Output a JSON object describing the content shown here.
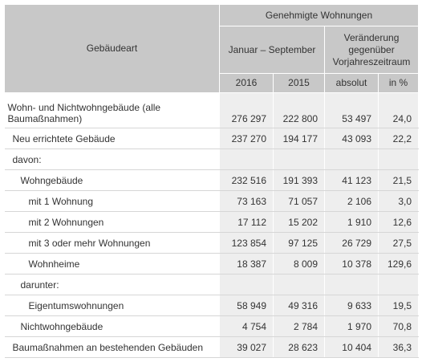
{
  "header": {
    "gebaeudeart": "Gebäudeart",
    "group": "Genehmigte Wohnungen",
    "period": "Januar – September",
    "change": "Veränderung gegenüber Vorjahreszeitraum",
    "y2016": "2016",
    "y2015": "2015",
    "absolut": "absolut",
    "percent": "in %"
  },
  "rows": [
    {
      "label": "Wohn- und Nichtwohngebäude (alle Baumaßnahmen)",
      "v2016": "276 297",
      "v2015": "222 800",
      "abs": "53 497",
      "pct": "24,0"
    },
    {
      "label": "Neu errichtete Gebäude",
      "v2016": "237 270",
      "v2015": "194 177",
      "abs": "43 093",
      "pct": "22,2"
    },
    {
      "label": "davon:",
      "v2016": "",
      "v2015": "",
      "abs": "",
      "pct": ""
    },
    {
      "label": "Wohngebäude",
      "v2016": "232 516",
      "v2015": "191 393",
      "abs": "41 123",
      "pct": "21,5"
    },
    {
      "label": "mit 1 Wohnung",
      "v2016": "73 163",
      "v2015": "71 057",
      "abs": "2 106",
      "pct": "3,0"
    },
    {
      "label": "mit 2 Wohnungen",
      "v2016": "17 112",
      "v2015": "15 202",
      "abs": "1 910",
      "pct": "12,6"
    },
    {
      "label": "mit 3 oder mehr Wohnungen",
      "v2016": "123 854",
      "v2015": "97 125",
      "abs": "26 729",
      "pct": "27,5"
    },
    {
      "label": "Wohnheime",
      "v2016": "18 387",
      "v2015": "8 009",
      "abs": "10 378",
      "pct": "129,6"
    },
    {
      "label": "darunter:",
      "v2016": "",
      "v2015": "",
      "abs": "",
      "pct": ""
    },
    {
      "label": "Eigentumswohnungen",
      "v2016": "58 949",
      "v2015": "49 316",
      "abs": "9 633",
      "pct": "19,5"
    },
    {
      "label": "Nichtwohngebäude",
      "v2016": "4 754",
      "v2015": "2 784",
      "abs": "1 970",
      "pct": "70,8"
    },
    {
      "label": "Baumaßnahmen an bestehenden Gebäuden",
      "v2016": "39 027",
      "v2015": "28 623",
      "abs": "10 404",
      "pct": "36,3"
    }
  ]
}
